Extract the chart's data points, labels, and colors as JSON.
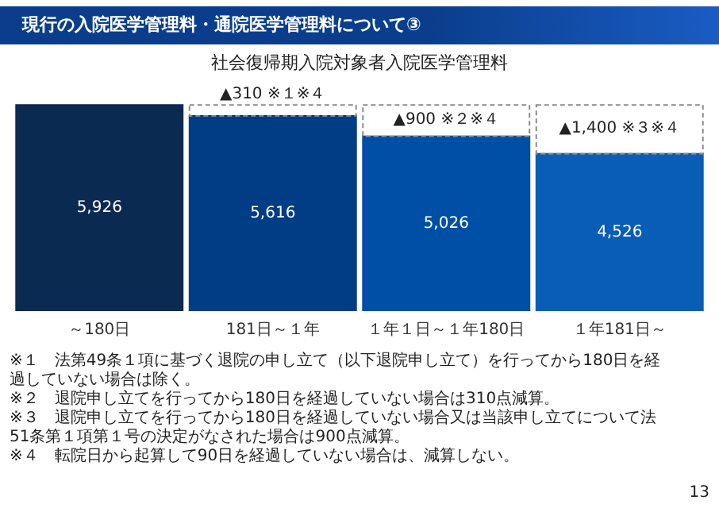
{
  "chart_data": {
    "type": "bar",
    "title": "現行の入院医学管理料・通院医学管理料について③",
    "subtitle": "社会復帰期入院対象者入院医学管理料",
    "categories": [
      "～180日",
      "181日～１年",
      "１年１日～１年180日",
      "１年181日～"
    ],
    "stacked": true,
    "tick_labels": "x",
    "grid": false,
    "legend": false,
    "series": [
      {
        "colors": [
          "#0b2a52",
          "#003d85",
          "#004fa6",
          "#0a5db5"
        ],
        "values": [
          5926,
          5616,
          5026,
          4526
        ],
        "value_labels": [
          "5,926",
          "5,616",
          "5,026",
          "4,526"
        ]
      },
      {
        "color": "#ffffff",
        "line_style": "dashed",
        "values": [
          null,
          310,
          900,
          1400
        ],
        "value_labels": [
          null,
          "▲310 ※１※４",
          "▲900 ※２※４",
          "▲1,400 ※３※４"
        ]
      }
    ],
    "annotations": [
      "※１　法第49条１項に基づく退院の申し立て（以下退院申し立て）を行ってから180日を経過していない場合は除く。",
      "※２　退院申し立てを行ってから180日を経過していない場合は310点減算。",
      "※３　退院申し立てを行ってから180日を経過していない場合又は当該申し立てについて法51条第１項第１号の決定がなされた場合は900点減算。",
      "※４　転院日から起算して90日を経過していない場合は、減算しない。",
      "13"
    ]
  }
}
